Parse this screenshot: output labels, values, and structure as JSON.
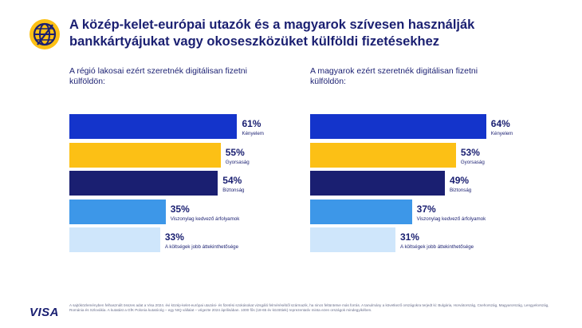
{
  "header": {
    "title": "A közép-kelet-európai utazók és a magyarok szívesen használják bankkártyájukat vagy okoseszközüket külföldi fizetésekhez"
  },
  "chart_data": [
    {
      "type": "bar",
      "orientation": "horizontal",
      "title": "A régió lakosai ezért szeretnék digitálisan fizetni külföldön:",
      "categories": [
        "Kényelem",
        "Gyorsaság",
        "Biztonság",
        "Viszonylag kedvező árfolyamok",
        "A költségek jobb áttekinthetősége"
      ],
      "values": [
        61,
        55,
        54,
        35,
        33
      ],
      "value_labels": [
        "61%",
        "55%",
        "54%",
        "35%",
        "33%"
      ],
      "colors": [
        "#1434cb",
        "#fcc015",
        "#1a1f71",
        "#3d97e8",
        "#cfe6fb"
      ],
      "unit": "%"
    },
    {
      "type": "bar",
      "orientation": "horizontal",
      "title": "A magyarok ezért szeretnék digitálisan fizetni külföldön:",
      "categories": [
        "Kényelem",
        "Gyorsaság",
        "Biztonság",
        "Viszonylag kedvező árfolyamok",
        "A költségek jobb áttekinthetősége"
      ],
      "values": [
        64,
        53,
        49,
        37,
        31
      ],
      "value_labels": [
        "64%",
        "53%",
        "49%",
        "37%",
        "31%"
      ],
      "colors": [
        "#1434cb",
        "#fcc015",
        "#1a1f71",
        "#3d97e8",
        "#cfe6fb"
      ],
      "unit": "%"
    }
  ],
  "footer": {
    "logo": "VISA",
    "note": "A sajtóközleményben felhasznált összes adat a Visa 2024. évi közép-kelet-európai utazási- és fizetési szokásokat vizsgáló felméréséből származik, ha nincs feltüntetve más forrás. A tanulmány a következő országokra terjedt ki: Bulgária, Horvátország, Csehország, Magyarország, Lengyelország, Románia és Szlovákia. A kutatást a GfK Polonia kutatócég – egy NIQ vállalat – végezte 2024 áprilisában. 1000 fős (18-65 év közöttiek) reprezentatív minta ezen országok mindegyikében."
  }
}
